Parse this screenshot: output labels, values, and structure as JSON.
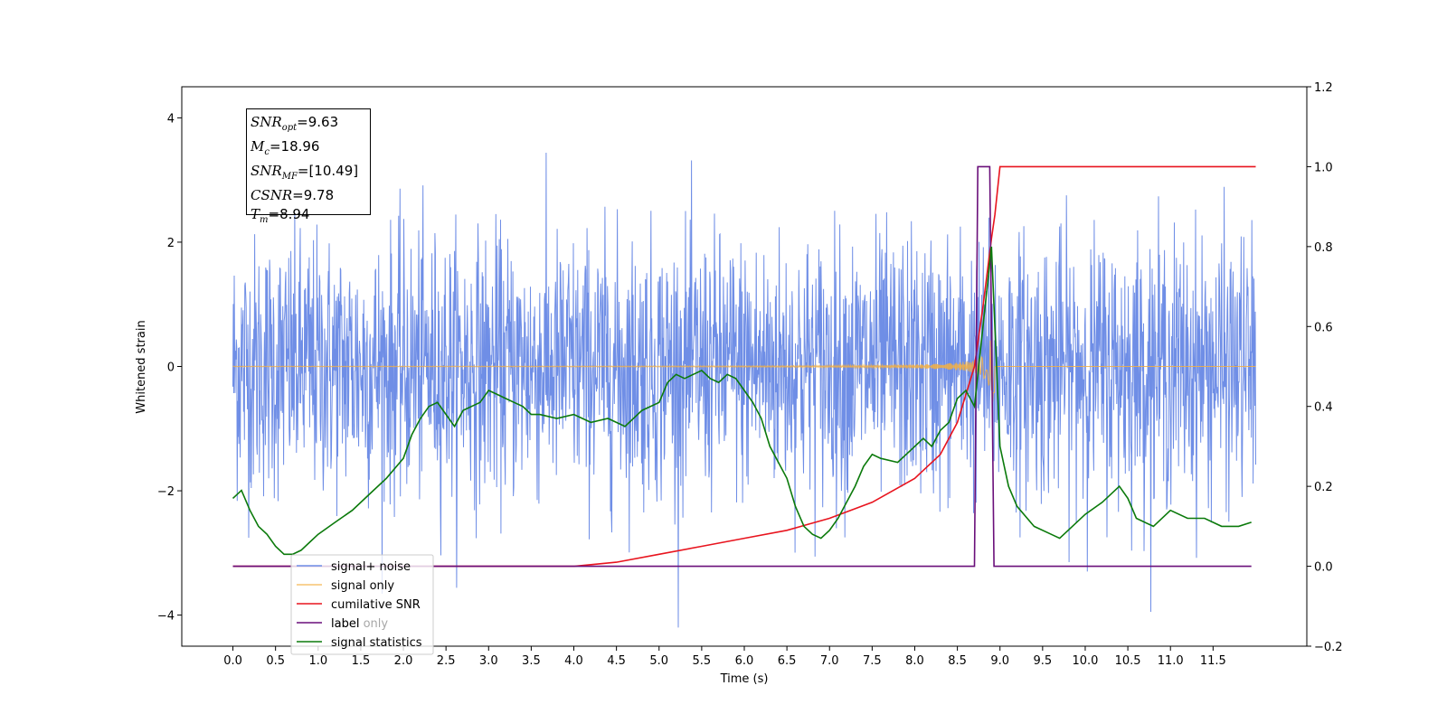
{
  "colors": {
    "noise": "#6f8ee6",
    "signal": "#f5b041",
    "cumulative": "#e8141e",
    "label": "#6a0f7a",
    "stats": "#0b7a0b"
  },
  "info_box": {
    "snr_opt": {
      "sym": "SNR",
      "sub": "opt",
      "val": "=9.63"
    },
    "mc": {
      "sym": "M",
      "sub": "c",
      "val": "=18.96"
    },
    "snr_mf": {
      "sym": "SNR",
      "sub": "MF",
      "val": "=[10.49]"
    },
    "csnr": {
      "sym": "CSNR",
      "sub": "",
      "val": "=9.78"
    },
    "tm": {
      "sym": "T",
      "sub": "m",
      "val": "=8.94"
    }
  },
  "chart_data": {
    "type": "line",
    "xlabel": "Time (s)",
    "ylabel": "Whitened strain",
    "xlim": [
      -0.6,
      12.6
    ],
    "ylim": [
      -4.5,
      4.5
    ],
    "y2lim": [
      -0.2,
      1.2
    ],
    "x_ticks": [
      "0.0",
      "0.5",
      "1.0",
      "1.5",
      "2.0",
      "2.5",
      "3.0",
      "3.5",
      "4.0",
      "4.5",
      "5.0",
      "5.5",
      "6.0",
      "6.5",
      "7.0",
      "7.5",
      "8.0",
      "8.5",
      "9.0",
      "9.5",
      "10.0",
      "10.5",
      "11.0",
      "11.5"
    ],
    "y_ticks": [
      "-4",
      "-2",
      "0",
      "2",
      "4"
    ],
    "y2_ticks": [
      "-0.2",
      "0.0",
      "0.2",
      "0.4",
      "0.6",
      "0.8",
      "1.0",
      "1.2"
    ],
    "legend_position": "lower-left",
    "series": [
      {
        "name": "signal+ noise",
        "axis": "left",
        "kind": "noise",
        "x_range": [
          0,
          12
        ],
        "std": 1.05
      },
      {
        "name": "signal only",
        "axis": "left",
        "kind": "chirp",
        "merger_time": 8.94
      },
      {
        "name": "cumilative SNR",
        "axis": "right",
        "x": [
          0,
          4.0,
          4.5,
          5.0,
          5.5,
          6.0,
          6.5,
          7.0,
          7.5,
          8.0,
          8.3,
          8.5,
          8.7,
          8.8,
          8.9,
          8.94,
          9.0,
          12.0
        ],
        "y": [
          0,
          0,
          0.01,
          0.03,
          0.05,
          0.07,
          0.09,
          0.12,
          0.16,
          0.22,
          0.28,
          0.36,
          0.5,
          0.65,
          0.82,
          0.88,
          1.0,
          1.0
        ]
      },
      {
        "name": "label",
        "axis": "right",
        "x": [
          0,
          8.7,
          8.74,
          8.88,
          8.93,
          11.95
        ],
        "y": [
          0,
          0,
          1.0,
          1.0,
          0,
          0
        ]
      },
      {
        "name": "label only",
        "axis": "right",
        "kind": "label-text"
      },
      {
        "name": "signal statistics",
        "axis": "right",
        "x": [
          0,
          0.1,
          0.2,
          0.3,
          0.4,
          0.5,
          0.6,
          0.7,
          0.8,
          0.9,
          1.0,
          1.2,
          1.4,
          1.6,
          1.8,
          2.0,
          2.1,
          2.2,
          2.3,
          2.4,
          2.5,
          2.6,
          2.7,
          2.8,
          2.9,
          3.0,
          3.1,
          3.2,
          3.3,
          3.4,
          3.5,
          3.6,
          3.8,
          4.0,
          4.2,
          4.4,
          4.5,
          4.6,
          4.8,
          5.0,
          5.1,
          5.2,
          5.3,
          5.4,
          5.5,
          5.6,
          5.7,
          5.8,
          5.9,
          6.0,
          6.1,
          6.2,
          6.3,
          6.4,
          6.5,
          6.6,
          6.7,
          6.8,
          6.9,
          7.0,
          7.1,
          7.2,
          7.3,
          7.4,
          7.5,
          7.6,
          7.8,
          8.0,
          8.1,
          8.2,
          8.3,
          8.4,
          8.5,
          8.6,
          8.7,
          8.8,
          8.9,
          9.0,
          9.1,
          9.2,
          9.4,
          9.6,
          9.7,
          9.8,
          10.0,
          10.2,
          10.4,
          10.5,
          10.6,
          10.8,
          11.0,
          11.2,
          11.4,
          11.6,
          11.8,
          11.95
        ],
        "y": [
          0.17,
          0.19,
          0.14,
          0.1,
          0.08,
          0.05,
          0.03,
          0.03,
          0.04,
          0.06,
          0.08,
          0.11,
          0.14,
          0.18,
          0.22,
          0.27,
          0.33,
          0.37,
          0.4,
          0.41,
          0.38,
          0.35,
          0.39,
          0.4,
          0.41,
          0.44,
          0.43,
          0.42,
          0.41,
          0.4,
          0.38,
          0.38,
          0.37,
          0.38,
          0.36,
          0.37,
          0.36,
          0.35,
          0.39,
          0.41,
          0.46,
          0.48,
          0.47,
          0.48,
          0.49,
          0.47,
          0.46,
          0.48,
          0.47,
          0.44,
          0.41,
          0.37,
          0.3,
          0.26,
          0.22,
          0.15,
          0.1,
          0.08,
          0.07,
          0.09,
          0.12,
          0.16,
          0.2,
          0.25,
          0.28,
          0.27,
          0.26,
          0.3,
          0.32,
          0.3,
          0.34,
          0.36,
          0.42,
          0.44,
          0.4,
          0.6,
          0.8,
          0.3,
          0.2,
          0.15,
          0.1,
          0.08,
          0.07,
          0.09,
          0.13,
          0.16,
          0.2,
          0.17,
          0.12,
          0.1,
          0.14,
          0.12,
          0.12,
          0.1,
          0.1,
          0.11
        ]
      }
    ]
  }
}
